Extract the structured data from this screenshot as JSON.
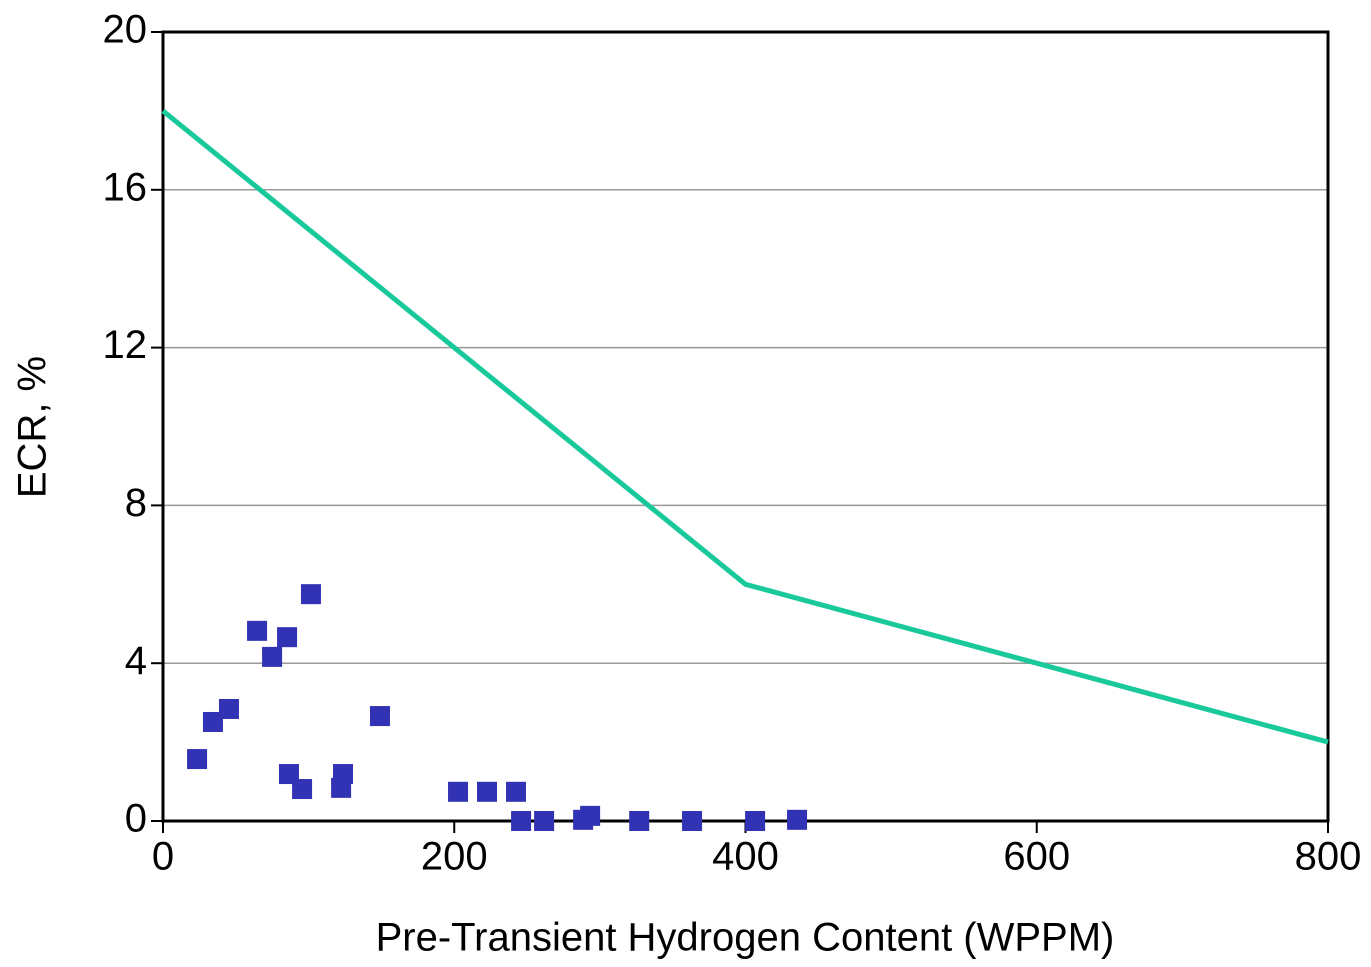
{
  "chart_data": {
    "type": "scatter",
    "x_label": "Pre-Transient Hydrogen Content (WPPM)",
    "y_label": "ECR, %",
    "xlim": [
      0,
      800
    ],
    "ylim": [
      0,
      20
    ],
    "xticks": [
      0,
      200,
      400,
      600,
      800
    ],
    "yticks": [
      0,
      4,
      8,
      12,
      16,
      20
    ],
    "grid": true,
    "series": [
      {
        "type": "scatter",
        "color": "#3232b4",
        "x": [
          23.4,
          34.3,
          45.3,
          64.6,
          74.9,
          85.2,
          101.6,
          86.5,
          95.5,
          122.3,
          123.6,
          149,
          202.6,
          222.5,
          242.4,
          245.9,
          261.7,
          288.5,
          293.3,
          327,
          363.3,
          406.6,
          435.4
        ],
        "values": [
          1.57,
          2.51,
          2.84,
          4.82,
          4.16,
          4.66,
          5.75,
          1.19,
          0.81,
          0.84,
          1.19,
          2.66,
          0.74,
          0.74,
          0.74,
          0,
          0,
          0.03,
          0.13,
          0,
          0,
          0,
          0.03
        ]
      },
      {
        "type": "line",
        "color": "#19c99b",
        "x": [
          0,
          400,
          600,
          800
        ],
        "values": [
          18,
          6,
          4,
          2
        ]
      }
    ]
  }
}
